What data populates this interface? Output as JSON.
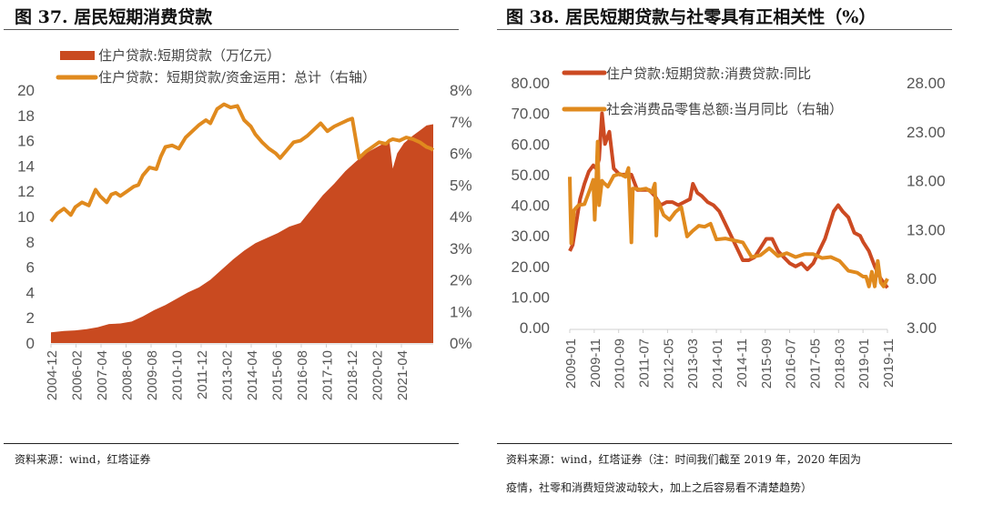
{
  "colors": {
    "area_red": "#c94a20",
    "line_orange": "#e08a1e",
    "line_red": "#cc4a22",
    "axis": "#d0d0d0"
  },
  "chart_data": [
    {
      "id": "fig37",
      "type": "area",
      "title": "图 37. 居民短期消费贷款",
      "source": "资料来源：wind，红塔证券",
      "xlabel": "",
      "ylabel_left": "",
      "ylabel_right": "",
      "x_tick_labels": [
        "2004-12",
        "2006-02",
        "2007-04",
        "2008-06",
        "2009-08",
        "2010-10",
        "2011-12",
        "2013-02",
        "2014-04",
        "2015-06",
        "2016-08",
        "2017-10",
        "2018-12",
        "2020-02",
        "2021-04"
      ],
      "y_left_ticks": [
        "0",
        "2",
        "4",
        "6",
        "8",
        "10",
        "12",
        "14",
        "16",
        "18",
        "20"
      ],
      "y_left_range": [
        0,
        20
      ],
      "y_right_ticks": [
        "0%",
        "1%",
        "2%",
        "3%",
        "4%",
        "5%",
        "6%",
        "7%",
        "8%"
      ],
      "y_right_range": [
        0,
        8
      ],
      "legend_position": "top-left",
      "x_range": [
        2004.92,
        2021.9
      ],
      "series": [
        {
          "name": "住户贷款:短期贷款（万亿元）",
          "type": "area",
          "axis": "left",
          "color_key": "area_red",
          "x": [
            2004.92,
            2005.5,
            2006.0,
            2006.5,
            2007.0,
            2007.5,
            2008.0,
            2008.5,
            2009.0,
            2009.5,
            2010.0,
            2010.5,
            2011.0,
            2011.5,
            2012.0,
            2012.5,
            2013.0,
            2013.5,
            2014.0,
            2014.5,
            2015.0,
            2015.5,
            2016.0,
            2016.5,
            2017.0,
            2017.5,
            2018.0,
            2018.5,
            2019.0,
            2019.5,
            2019.95,
            2020.1,
            2020.3,
            2020.6,
            2021.0,
            2021.3,
            2021.6,
            2021.9
          ],
          "y": [
            0.85,
            0.95,
            1.0,
            1.1,
            1.25,
            1.5,
            1.55,
            1.7,
            2.1,
            2.6,
            3.0,
            3.5,
            4.0,
            4.4,
            5.0,
            5.8,
            6.6,
            7.3,
            7.9,
            8.3,
            8.7,
            9.2,
            9.5,
            10.6,
            11.7,
            12.6,
            13.6,
            14.4,
            15.1,
            15.6,
            16.0,
            13.8,
            15.0,
            15.8,
            16.4,
            16.8,
            17.2,
            17.3
          ]
        },
        {
          "name": "住户贷款：短期贷款/资金运用：总计（右轴）",
          "type": "line",
          "axis": "right",
          "color_key": "line_orange",
          "x": [
            2004.92,
            2005.2,
            2005.5,
            2005.8,
            2006.0,
            2006.3,
            2006.6,
            2006.9,
            2007.1,
            2007.4,
            2007.6,
            2007.8,
            2008.0,
            2008.3,
            2008.6,
            2008.8,
            2009.0,
            2009.3,
            2009.6,
            2009.8,
            2010.0,
            2010.3,
            2010.6,
            2010.9,
            2011.2,
            2011.5,
            2011.8,
            2012.0,
            2012.3,
            2012.6,
            2012.9,
            2013.2,
            2013.5,
            2013.8,
            2014.0,
            2014.3,
            2014.6,
            2014.9,
            2015.1,
            2015.4,
            2015.7,
            2016.0,
            2016.3,
            2016.6,
            2016.9,
            2017.2,
            2017.5,
            2017.8,
            2018.1,
            2018.3,
            2018.6,
            2018.9,
            2019.2,
            2019.5,
            2019.8,
            2019.95,
            2020.1,
            2020.4,
            2020.7,
            2021.0,
            2021.3,
            2021.6,
            2021.8,
            2021.9
          ],
          "y": [
            3.85,
            4.1,
            4.25,
            4.05,
            4.3,
            4.45,
            4.35,
            4.85,
            4.65,
            4.45,
            4.7,
            4.75,
            4.65,
            4.8,
            4.95,
            5.0,
            5.3,
            5.55,
            5.5,
            5.9,
            6.2,
            6.25,
            6.15,
            6.5,
            6.7,
            6.9,
            7.05,
            6.95,
            7.4,
            7.55,
            7.45,
            7.5,
            7.05,
            6.85,
            6.6,
            6.35,
            6.15,
            6.0,
            5.85,
            6.1,
            6.35,
            6.4,
            6.55,
            6.75,
            6.95,
            6.7,
            6.85,
            6.95,
            7.05,
            7.1,
            5.85,
            6.05,
            6.2,
            6.35,
            6.3,
            6.4,
            6.45,
            6.4,
            6.5,
            6.45,
            6.35,
            6.2,
            6.15,
            6.1
          ]
        }
      ]
    },
    {
      "id": "fig38",
      "type": "line",
      "title": "图 38. 居民短期贷款与社零具有正相关性（%）",
      "source_line1": "资料来源：wind，红塔证券（注：时间我们截至 2019 年，2020 年因为",
      "source_line2": "疫情，社零和消费短贷波动较大，加上之后容易看不清楚趋势）",
      "xlabel": "",
      "x_tick_labels": [
        "2009-01",
        "2009-11",
        "2010-09",
        "2011-07",
        "2012-05",
        "2013-03",
        "2014-01",
        "2014-11",
        "2015-09",
        "2016-07",
        "2017-05",
        "2018-03",
        "2019-01",
        "2019-11"
      ],
      "y_left_ticks": [
        "0.00",
        "10.00",
        "20.00",
        "30.00",
        "40.00",
        "50.00",
        "60.00",
        "70.00",
        "80.00"
      ],
      "y_left_range": [
        0,
        80
      ],
      "y_right_ticks": [
        "3.00",
        "8.00",
        "13.00",
        "18.00",
        "23.00",
        "28.00"
      ],
      "y_right_range": [
        3,
        28
      ],
      "legend_position": "top-left",
      "x_range": [
        2009.0,
        2019.83
      ],
      "series": [
        {
          "name": "住户贷款:短期贷款:消费贷款:同比",
          "axis": "left",
          "color_key": "line_red",
          "x": [
            2009.0,
            2009.1,
            2009.2,
            2009.35,
            2009.5,
            2009.65,
            2009.8,
            2009.9,
            2010.0,
            2010.1,
            2010.2,
            2010.35,
            2010.5,
            2010.7,
            2010.9,
            2011.1,
            2011.3,
            2011.5,
            2011.7,
            2011.9,
            2012.1,
            2012.3,
            2012.5,
            2012.7,
            2012.9,
            2013.1,
            2013.2,
            2013.35,
            2013.5,
            2013.7,
            2013.9,
            2014.1,
            2014.3,
            2014.5,
            2014.7,
            2014.9,
            2015.1,
            2015.3,
            2015.5,
            2015.7,
            2015.9,
            2016.1,
            2016.3,
            2016.5,
            2016.7,
            2016.9,
            2017.1,
            2017.3,
            2017.5,
            2017.7,
            2017.9,
            2018.0,
            2018.15,
            2018.3,
            2018.5,
            2018.7,
            2018.9,
            2019.0,
            2019.2,
            2019.4,
            2019.6,
            2019.83
          ],
          "y": [
            25,
            27,
            33,
            42,
            47,
            51,
            53,
            52,
            55,
            70,
            60,
            64,
            52,
            50,
            50,
            50,
            45,
            45,
            45,
            43,
            40,
            41,
            41,
            40,
            41,
            42,
            47,
            44,
            43,
            41,
            40,
            38,
            34,
            30,
            26,
            22,
            22,
            23,
            26,
            29,
            29,
            25,
            23,
            21,
            20,
            21,
            19,
            21,
            25,
            29,
            35,
            38,
            40,
            38,
            36,
            31,
            30,
            28,
            25,
            20,
            16,
            13
          ]
        },
        {
          "name": "社会消费品零售总额:当月同比（右轴）",
          "axis": "right",
          "color_key": "line_orange",
          "x": [
            2009.0,
            2009.05,
            2009.15,
            2009.3,
            2009.5,
            2009.7,
            2009.8,
            2009.85,
            2009.9,
            2009.95,
            2010.0,
            2010.1,
            2010.15,
            2010.3,
            2010.5,
            2010.7,
            2010.9,
            2011.0,
            2011.1,
            2011.15,
            2011.2,
            2011.4,
            2011.6,
            2011.8,
            2011.9,
            2011.95,
            2012.0,
            2012.2,
            2012.4,
            2012.6,
            2012.8,
            2013.0,
            2013.2,
            2013.4,
            2013.6,
            2013.8,
            2014.0,
            2014.3,
            2014.6,
            2014.9,
            2015.2,
            2015.5,
            2015.8,
            2016.1,
            2016.4,
            2016.7,
            2017.0,
            2017.3,
            2017.6,
            2017.9,
            2018.2,
            2018.5,
            2018.8,
            2019.0,
            2019.1,
            2019.2,
            2019.3,
            2019.4,
            2019.5,
            2019.6,
            2019.7,
            2019.83
          ],
          "y": [
            18.4,
            11.6,
            15.0,
            15.5,
            15.6,
            17.2,
            18.1,
            14.0,
            17.8,
            22.0,
            15.5,
            18.0,
            17.8,
            17.4,
            18.5,
            18.7,
            18.4,
            19.3,
            11.7,
            17.2,
            17.2,
            17.1,
            17.2,
            16.8,
            17.7,
            12.4,
            16.0,
            14.5,
            14.0,
            14.8,
            15.3,
            12.3,
            12.9,
            13.4,
            13.3,
            13.6,
            12.0,
            12.1,
            11.9,
            11.7,
            10.2,
            10.4,
            11.1,
            10.3,
            10.6,
            10.2,
            10.5,
            10.5,
            10.1,
            10.2,
            9.8,
            8.8,
            8.6,
            8.2,
            8.2,
            7.2,
            8.7,
            7.2,
            9.8,
            7.6,
            7.2,
            8.0
          ]
        }
      ]
    }
  ]
}
